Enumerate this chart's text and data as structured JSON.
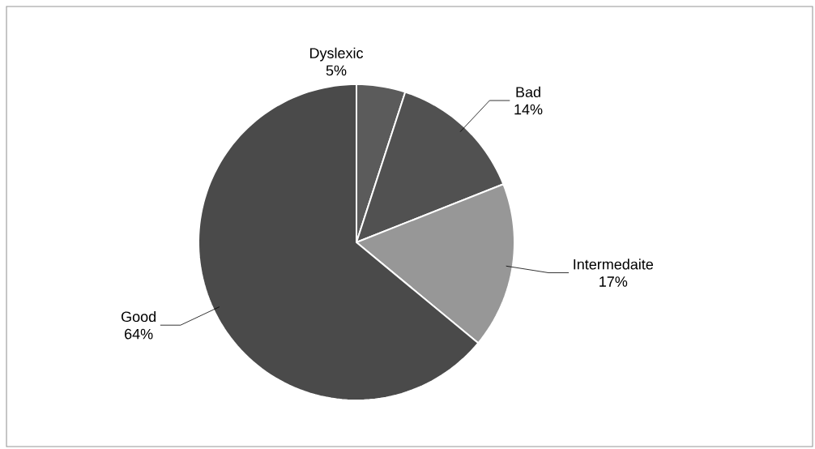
{
  "chart_data": {
    "type": "pie",
    "categories": [
      "Dyslexic",
      "Bad",
      "Intermedaite",
      "Good"
    ],
    "values": [
      5,
      14,
      17,
      64
    ],
    "value_labels": [
      "5%",
      "14%",
      "17%",
      "64%"
    ],
    "colors": [
      "#5b5b5b",
      "#515151",
      "#979797",
      "#4a4a4a"
    ]
  }
}
